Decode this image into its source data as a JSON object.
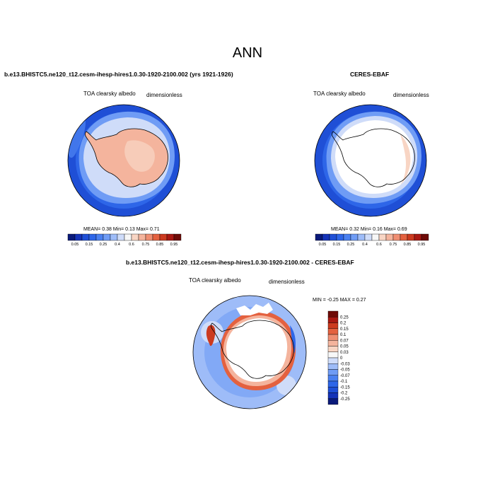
{
  "page": {
    "title": "ANN"
  },
  "panels": [
    {
      "title": "b.e13.BHISTC5.ne120_t12.cesm-ihesp-hires1.0.30-1920-2100.002 (yrs 1921-1926)",
      "left_label": "TOA clearsky albedo",
      "right_label": "dimensionless",
      "stats": "MEAN=   0.38  Min=    0.13  Max=    0.71"
    },
    {
      "title": "CERES-EBAF",
      "left_label": "TOA clearsky albedo",
      "right_label": "dimensionless",
      "stats": "MEAN=   0.32  Min=    0.16  Max=    0.69"
    },
    {
      "title": "b.e13.BHISTC5.ne120_t12.cesm-ihesp-hires1.0.30-1920-2100.002 - CERES-EBAF",
      "left_label": "TOA clearsky albedo",
      "right_label": "dimensionless",
      "stats": "MIN =  -0.25 MAX =   0.27"
    }
  ],
  "chart_data": [
    {
      "type": "heatmap",
      "projection": "south polar stereographic",
      "variable": "TOA clearsky albedo",
      "units": "dimensionless",
      "mean": 0.38,
      "min": 0.13,
      "max": 0.71,
      "colorbar": {
        "orientation": "horizontal",
        "levels": [
          0.05,
          0.1,
          0.15,
          0.2,
          0.25,
          0.3,
          0.4,
          0.5,
          0.6,
          0.7,
          0.75,
          0.8,
          0.85,
          0.9,
          0.95
        ],
        "tick_labels": [
          "0.05",
          "0.15",
          "0.25",
          "0.4",
          "0.6",
          "0.75",
          "0.85",
          "0.95"
        ],
        "colors": [
          "#0a1a7a",
          "#1533b8",
          "#1f4fd6",
          "#2e66e8",
          "#4a80f0",
          "#6f9cf5",
          "#9ebcf8",
          "#cfdcf9",
          "#f7f7f7",
          "#f8d5c4",
          "#f4b49d",
          "#ef8e72",
          "#e4613f",
          "#cc3a1f",
          "#a91812",
          "#6e0b07"
        ]
      },
      "regions": {
        "southern_ocean_near": 0.15,
        "southern_ocean_outer": 0.1,
        "sea_ice_ring": 0.45,
        "antarctica": 0.7
      }
    },
    {
      "type": "heatmap",
      "projection": "south polar stereographic",
      "variable": "TOA clearsky albedo",
      "units": "dimensionless",
      "mean": 0.32,
      "min": 0.16,
      "max": 0.69,
      "colorbar": {
        "orientation": "horizontal",
        "levels": [
          0.05,
          0.1,
          0.15,
          0.2,
          0.25,
          0.3,
          0.4,
          0.5,
          0.6,
          0.7,
          0.75,
          0.8,
          0.85,
          0.9,
          0.95
        ],
        "tick_labels": [
          "0.05",
          "0.15",
          "0.25",
          "0.4",
          "0.6",
          "0.75",
          "0.85",
          "0.95"
        ],
        "colors": [
          "#0a1a7a",
          "#1533b8",
          "#1f4fd6",
          "#2e66e8",
          "#4a80f0",
          "#6f9cf5",
          "#9ebcf8",
          "#cfdcf9",
          "#f7f7f7",
          "#f8d5c4",
          "#f4b49d",
          "#ef8e72",
          "#e4613f",
          "#cc3a1f",
          "#a91812",
          "#6e0b07"
        ]
      },
      "regions": {
        "southern_ocean_near": 0.15,
        "southern_ocean_outer": 0.1,
        "sea_ice_ring": 0.4,
        "antarctica": "missing"
      }
    },
    {
      "type": "heatmap",
      "projection": "south polar stereographic",
      "variable": "TOA clearsky albedo",
      "units": "dimensionless",
      "min": -0.25,
      "max": 0.27,
      "colorbar": {
        "orientation": "vertical",
        "levels": [
          -0.25,
          -0.2,
          -0.15,
          -0.1,
          -0.07,
          -0.05,
          -0.03,
          0,
          0.03,
          0.05,
          0.07,
          0.1,
          0.15,
          0.2,
          0.25
        ],
        "tick_labels": [
          "0.25",
          "0.2",
          "0.15",
          "0.1",
          "0.07",
          "0.05",
          "0.03",
          "0",
          "-0.03",
          "-0.05",
          "-0.07",
          "-0.1",
          "-0.15",
          "-0.2",
          "-0.25"
        ],
        "colors": [
          "#0a1a7a",
          "#1533b8",
          "#1f4fd6",
          "#2e66e8",
          "#4a80f0",
          "#6f9cf5",
          "#9ebcf8",
          "#cfdcf9",
          "#f7f7f7",
          "#f8d5c4",
          "#f4b49d",
          "#ef8e72",
          "#e4613f",
          "#cc3a1f",
          "#a91812",
          "#6e0b07"
        ]
      },
      "regions": {
        "southern_ocean": -0.03,
        "sea_ice_edge": 0.1,
        "antarctica": "missing"
      }
    }
  ]
}
